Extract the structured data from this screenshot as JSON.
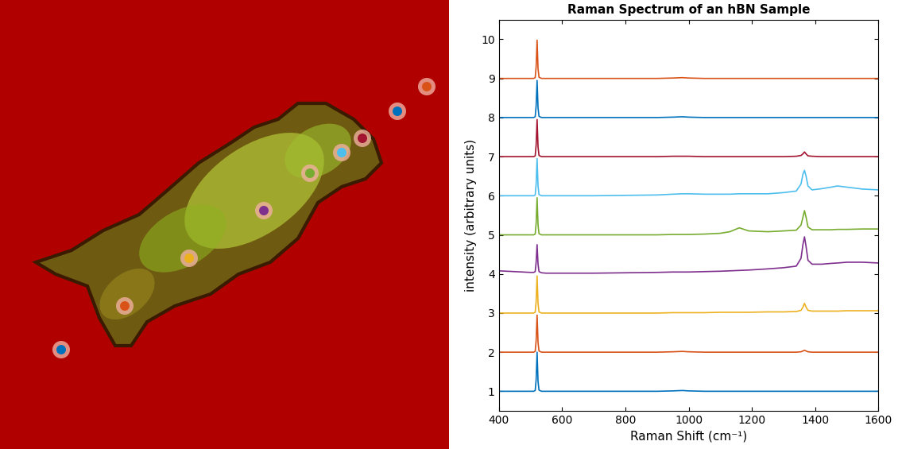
{
  "chart_data": {
    "type": "line",
    "title": "Raman Spectrum of an hBN Sample",
    "x_label": "Raman Shift (cm⁻¹)",
    "y_label": "intensity (arbitrary units)",
    "xlim": [
      400,
      1600
    ],
    "xticks": [
      400,
      600,
      800,
      1000,
      1200,
      1400,
      1600
    ],
    "ylim": [
      0.5,
      10.5
    ],
    "yticks": [
      1,
      2,
      3,
      4,
      5,
      6,
      7,
      8,
      9,
      10
    ],
    "grid": false,
    "x": [
      400,
      450,
      500,
      510,
      515,
      518,
      521,
      524,
      527,
      535,
      550,
      600,
      700,
      800,
      900,
      950,
      980,
      1000,
      1050,
      1100,
      1130,
      1160,
      1190,
      1250,
      1300,
      1340,
      1355,
      1361,
      1366,
      1371,
      1377,
      1390,
      1420,
      1450,
      1470,
      1500,
      1550,
      1600
    ],
    "series": [
      {
        "color": "#0072BD",
        "values": [
          1.0,
          1.0,
          1.0,
          1.0,
          1.02,
          1.3,
          2.0,
          1.25,
          1.03,
          1.0,
          1.0,
          1.0,
          1.0,
          1.0,
          1.0,
          1.01,
          1.02,
          1.01,
          1.0,
          1.0,
          1.0,
          1.0,
          1.0,
          1.0,
          1.0,
          1.0,
          1.0,
          1.0,
          1.0,
          1.0,
          1.0,
          1.0,
          1.0,
          1.0,
          1.0,
          1.0,
          1.0,
          1.0
        ]
      },
      {
        "color": "#D95319",
        "values": [
          2.0,
          2.0,
          2.0,
          2.0,
          2.02,
          2.3,
          2.95,
          2.25,
          2.03,
          2.0,
          2.0,
          2.0,
          2.0,
          2.0,
          2.0,
          2.01,
          2.02,
          2.01,
          2.0,
          2.0,
          2.0,
          2.0,
          2.0,
          2.0,
          2.0,
          2.0,
          2.01,
          2.03,
          2.05,
          2.03,
          2.01,
          2.0,
          2.0,
          2.0,
          2.0,
          2.0,
          2.0,
          2.0
        ]
      },
      {
        "color": "#EDB120",
        "values": [
          3.0,
          3.0,
          3.0,
          3.0,
          3.02,
          3.3,
          3.95,
          3.25,
          3.03,
          3.0,
          3.0,
          3.0,
          3.0,
          3.0,
          3.0,
          3.01,
          3.01,
          3.01,
          3.01,
          3.02,
          3.02,
          3.02,
          3.02,
          3.03,
          3.03,
          3.04,
          3.07,
          3.15,
          3.25,
          3.15,
          3.07,
          3.05,
          3.05,
          3.05,
          3.05,
          3.06,
          3.06,
          3.06
        ]
      },
      {
        "color": "#7E2F8E",
        "values": [
          4.08,
          4.06,
          4.04,
          4.04,
          4.06,
          4.3,
          4.75,
          4.25,
          4.06,
          4.03,
          4.02,
          4.02,
          4.02,
          4.03,
          4.04,
          4.05,
          4.05,
          4.05,
          4.06,
          4.07,
          4.08,
          4.09,
          4.1,
          4.13,
          4.16,
          4.2,
          4.4,
          4.75,
          4.95,
          4.7,
          4.35,
          4.25,
          4.25,
          4.27,
          4.28,
          4.3,
          4.3,
          4.28
        ]
      },
      {
        "color": "#77AC30",
        "values": [
          5.0,
          5.0,
          5.0,
          5.0,
          5.02,
          5.3,
          5.95,
          5.25,
          5.03,
          5.0,
          5.0,
          5.0,
          5.0,
          5.0,
          5.0,
          5.01,
          5.01,
          5.01,
          5.02,
          5.04,
          5.08,
          5.18,
          5.1,
          5.08,
          5.1,
          5.12,
          5.25,
          5.45,
          5.62,
          5.45,
          5.2,
          5.13,
          5.13,
          5.13,
          5.14,
          5.14,
          5.15,
          5.15
        ]
      },
      {
        "color": "#4DBEEE",
        "values": [
          6.0,
          6.0,
          6.0,
          6.0,
          6.02,
          6.3,
          6.95,
          6.25,
          6.03,
          6.0,
          6.0,
          6.0,
          6.0,
          6.01,
          6.02,
          6.04,
          6.05,
          6.05,
          6.04,
          6.04,
          6.04,
          6.05,
          6.05,
          6.05,
          6.08,
          6.12,
          6.3,
          6.55,
          6.65,
          6.5,
          6.25,
          6.15,
          6.18,
          6.22,
          6.25,
          6.22,
          6.17,
          6.15
        ]
      },
      {
        "color": "#A2142F",
        "values": [
          7.0,
          7.0,
          7.0,
          7.0,
          7.02,
          7.3,
          7.95,
          7.25,
          7.03,
          7.0,
          7.0,
          7.0,
          7.0,
          7.0,
          7.0,
          7.01,
          7.01,
          7.01,
          7.0,
          7.0,
          7.0,
          7.0,
          7.0,
          7.0,
          7.0,
          7.01,
          7.03,
          7.07,
          7.12,
          7.07,
          7.02,
          7.01,
          7.0,
          7.0,
          7.0,
          7.0,
          7.0,
          7.0
        ]
      },
      {
        "color": "#0072BD",
        "values": [
          8.0,
          8.0,
          8.0,
          8.0,
          8.02,
          8.3,
          8.95,
          8.25,
          8.03,
          8.0,
          8.0,
          8.0,
          8.0,
          8.0,
          8.0,
          8.01,
          8.02,
          8.01,
          8.0,
          8.0,
          8.0,
          8.0,
          8.0,
          8.0,
          8.0,
          8.0,
          8.0,
          8.0,
          8.0,
          8.0,
          8.0,
          8.0,
          8.0,
          8.0,
          8.0,
          8.0,
          8.0,
          8.0
        ]
      },
      {
        "color": "#D95319",
        "values": [
          9.0,
          9.0,
          9.0,
          9.0,
          9.02,
          9.3,
          9.98,
          9.25,
          9.03,
          9.0,
          9.0,
          9.0,
          9.0,
          9.0,
          9.0,
          9.01,
          9.02,
          9.01,
          9.0,
          9.0,
          9.0,
          9.0,
          9.0,
          9.0,
          9.0,
          9.0,
          9.0,
          9.0,
          9.0,
          9.0,
          9.0,
          9.0,
          9.0,
          9.0,
          9.0,
          9.0,
          9.0,
          9.0
        ]
      }
    ]
  }
}
